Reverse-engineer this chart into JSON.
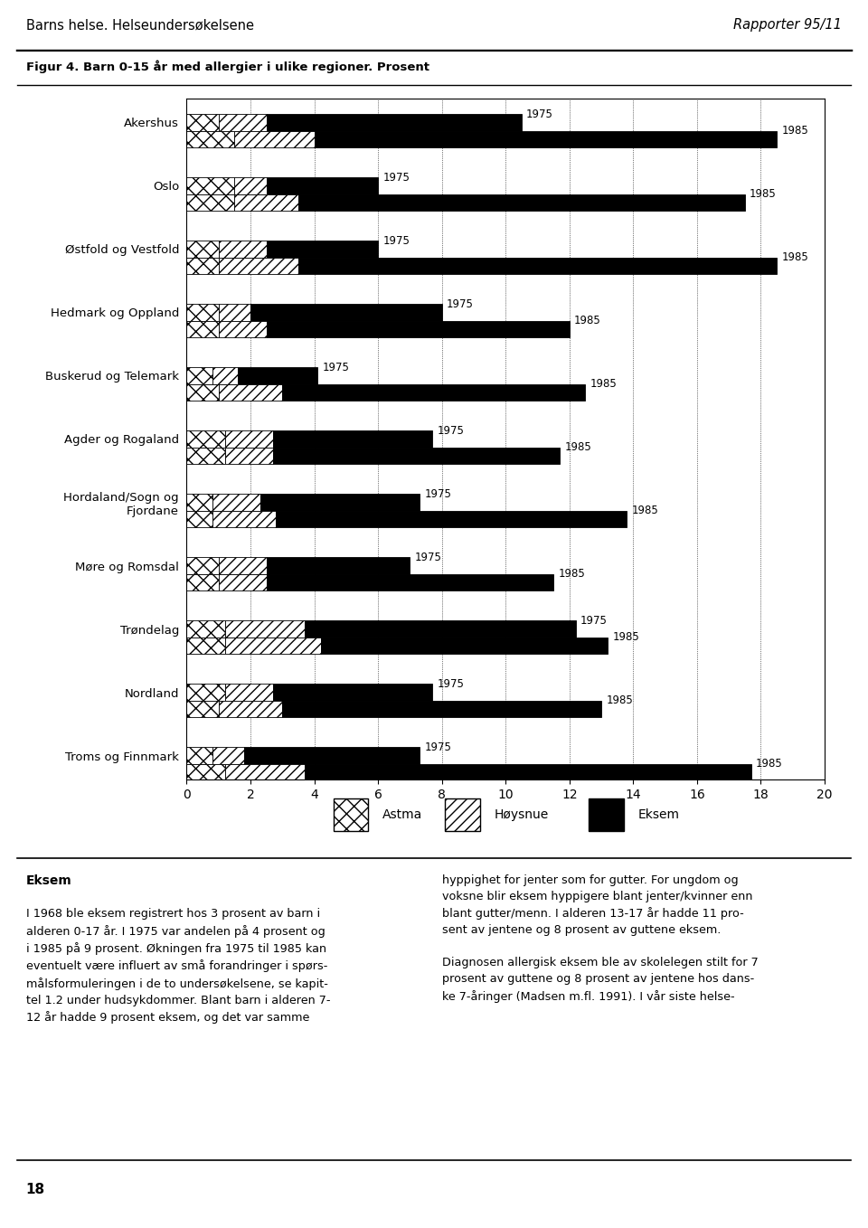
{
  "header_left": "Barns helse. Helseundersøkelsene",
  "header_right": "Rapporter 95/11",
  "figure_title": "Figur 4. Barn 0-15 år med allergier i ulike regioner. Prosent",
  "regions": [
    "Akershus",
    "Oslo",
    "Østfold og Vestfold",
    "Hedmark og Oppland",
    "Buskerud og Telemark",
    "Agder og Rogaland",
    "Hordaland/Sogn og\nFjordane",
    "Møre og Romsdal",
    "Trøndelag",
    "Nordland",
    "Troms og Finnmark"
  ],
  "data_1975": [
    {
      "astma": 1.0,
      "hoysnue": 1.5,
      "eksem": 8.0
    },
    {
      "astma": 1.5,
      "hoysnue": 1.0,
      "eksem": 3.5
    },
    {
      "astma": 1.0,
      "hoysnue": 1.5,
      "eksem": 3.5
    },
    {
      "astma": 1.0,
      "hoysnue": 1.0,
      "eksem": 6.0
    },
    {
      "astma": 0.8,
      "hoysnue": 0.8,
      "eksem": 2.5
    },
    {
      "astma": 1.2,
      "hoysnue": 1.5,
      "eksem": 5.0
    },
    {
      "astma": 0.8,
      "hoysnue": 1.5,
      "eksem": 5.0
    },
    {
      "astma": 1.0,
      "hoysnue": 1.5,
      "eksem": 4.5
    },
    {
      "astma": 1.2,
      "hoysnue": 2.5,
      "eksem": 8.5
    },
    {
      "astma": 1.2,
      "hoysnue": 1.5,
      "eksem": 5.0
    },
    {
      "astma": 0.8,
      "hoysnue": 1.0,
      "eksem": 5.5
    }
  ],
  "data_1985": [
    {
      "astma": 1.5,
      "hoysnue": 2.5,
      "eksem": 14.5
    },
    {
      "astma": 1.5,
      "hoysnue": 2.0,
      "eksem": 14.0
    },
    {
      "astma": 1.0,
      "hoysnue": 2.5,
      "eksem": 15.0
    },
    {
      "astma": 1.0,
      "hoysnue": 1.5,
      "eksem": 9.5
    },
    {
      "astma": 1.0,
      "hoysnue": 2.0,
      "eksem": 9.5
    },
    {
      "astma": 1.2,
      "hoysnue": 1.5,
      "eksem": 9.0
    },
    {
      "astma": 0.8,
      "hoysnue": 2.0,
      "eksem": 11.0
    },
    {
      "astma": 1.0,
      "hoysnue": 1.5,
      "eksem": 9.0
    },
    {
      "astma": 1.2,
      "hoysnue": 3.0,
      "eksem": 9.0
    },
    {
      "astma": 1.0,
      "hoysnue": 2.0,
      "eksem": 10.0
    },
    {
      "astma": 1.2,
      "hoysnue": 2.5,
      "eksem": 14.0
    }
  ],
  "xlim": [
    0,
    20
  ],
  "xticks": [
    0,
    2,
    4,
    6,
    8,
    10,
    12,
    14,
    16,
    18,
    20
  ],
  "text_left_title": "Eksem",
  "text_left_body": "I 1968 ble eksem registrert hos 3 prosent av barn i\nalderen 0-17 år. I 1975 var andelen på 4 prosent og\ni 1985 på 9 prosent. Økningen fra 1975 til 1985 kan\neventuelt være influert av små forandringer i spørs-\nmålsformuleringen i de to undersøkelsene, se kapit-\ntel 1.2 under hudsykdommer. Blant barn i alderen 7-\n12 år hadde 9 prosent eksem, og det var samme",
  "text_right_body": "hyppighet for jenter som for gutter. For ungdom og\nvoksne blir eksem hyppigere blant jenter/kvinner enn\nblant gutter/menn. I alderen 13-17 år hadde 11 pro-\nsent av jentene og 8 prosent av guttene eksem.\n\nDiagnosen allergisk eksem ble av skolelegen stilt for 7\nprosent av guttene og 8 prosent av jentene hos dans-\nke 7-åringer (Madsen m.fl. 1991). I vår siste helse-",
  "page_number": "18"
}
